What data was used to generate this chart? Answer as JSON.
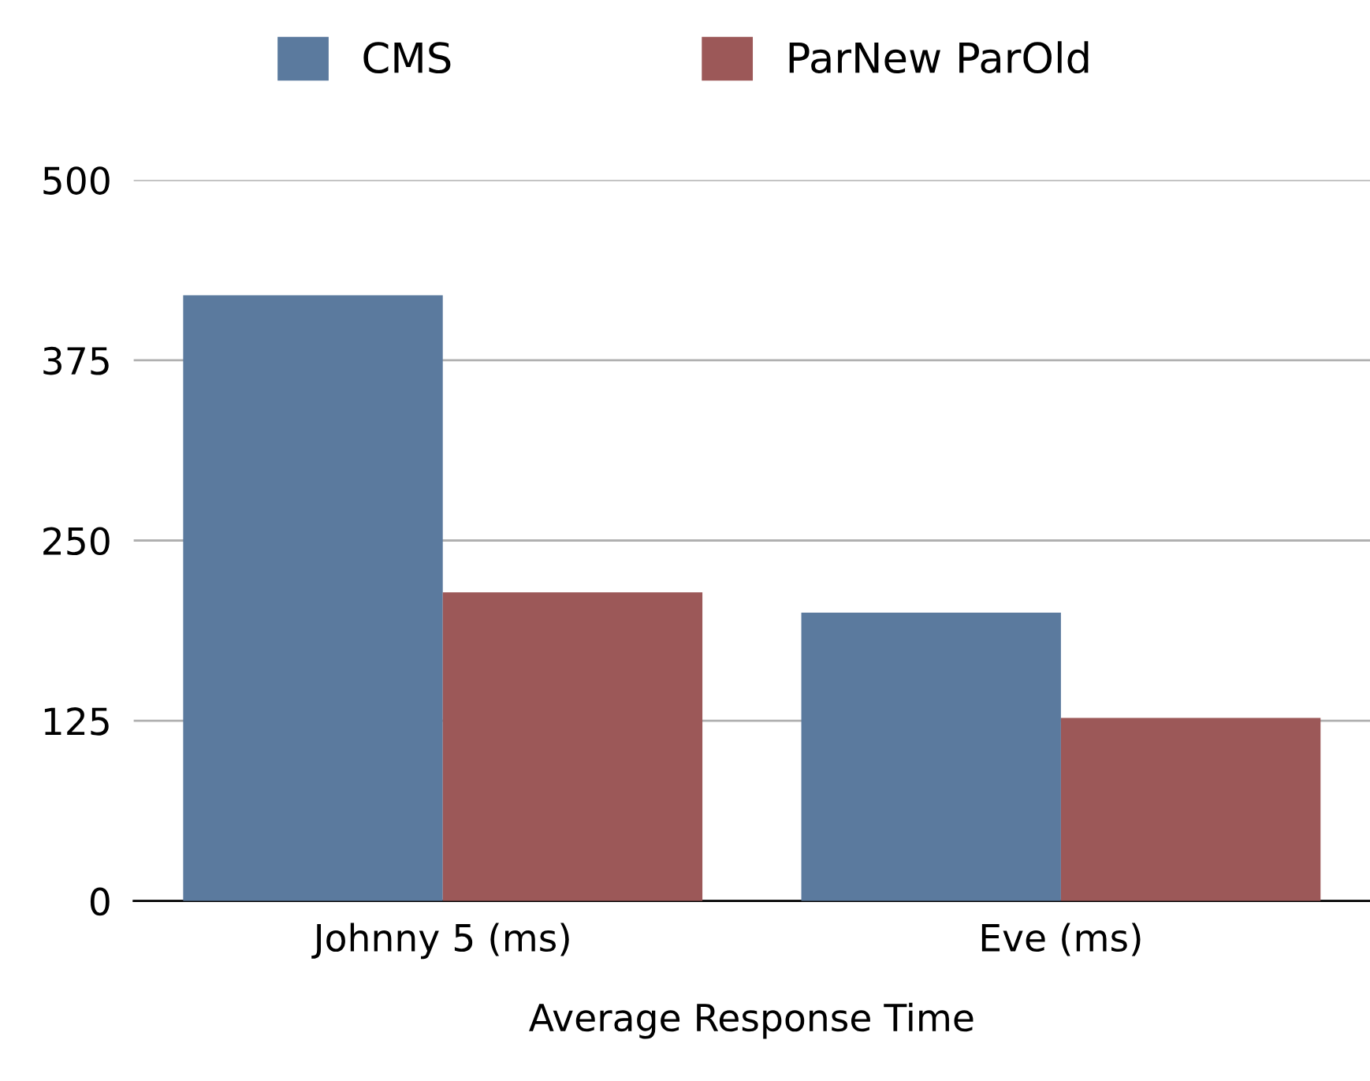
{
  "chart_data": {
    "type": "bar",
    "xlabel": "Average Response Time",
    "categories": [
      "Johnny 5 (ms)",
      "Eve (ms)"
    ],
    "series": [
      {
        "name": "CMS",
        "color": "#5b7a9e",
        "values": [
          420,
          200
        ]
      },
      {
        "name": "ParNew ParOld",
        "color": "#9c5858",
        "values": [
          214,
          127
        ]
      }
    ],
    "ylim": [
      0,
      500
    ],
    "yticks": [
      0,
      125,
      250,
      375,
      500
    ],
    "grid": "y",
    "legend": "top"
  }
}
